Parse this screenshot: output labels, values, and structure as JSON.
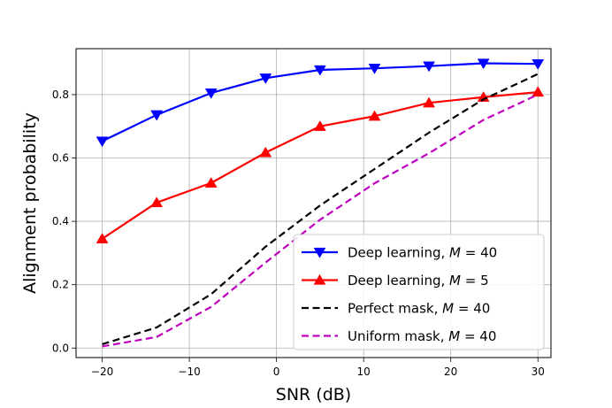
{
  "chart_data": {
    "type": "line",
    "xlabel": "SNR (dB)",
    "ylabel": "Alignment probability",
    "xlim": [
      -23,
      31.5
    ],
    "ylim": [
      -0.03,
      0.945
    ],
    "xticks": [
      -20,
      -10,
      0,
      10,
      20,
      30
    ],
    "yticks": [
      0.0,
      0.2,
      0.4,
      0.6,
      0.8
    ],
    "xtick_labels": [
      "−20",
      "−10",
      "0",
      "10",
      "20",
      "30"
    ],
    "ytick_labels": [
      "0.0",
      "0.2",
      "0.4",
      "0.6",
      "0.8"
    ],
    "grid": true,
    "legend_position": "lower-right",
    "series": [
      {
        "name": "Deep learning, M = 40",
        "label_prefix": "Deep learning, ",
        "label_var": "M",
        "label_suffix": " = 40",
        "color": "#0000ff",
        "dash": "solid",
        "marker": "triangle-down",
        "x": [
          -20,
          -13.75,
          -7.5,
          -1.25,
          5,
          11.25,
          17.5,
          23.75,
          30
        ],
        "y": [
          0.653,
          0.736,
          0.805,
          0.852,
          0.878,
          0.883,
          0.89,
          0.899,
          0.897
        ]
      },
      {
        "name": "Deep learning, M = 5",
        "label_prefix": "Deep learning, ",
        "label_var": "M",
        "label_suffix": " = 5",
        "color": "#ff0000",
        "dash": "solid",
        "marker": "triangle-up",
        "x": [
          -20,
          -13.75,
          -7.5,
          -1.25,
          5,
          11.25,
          17.5,
          23.75,
          30
        ],
        "y": [
          0.345,
          0.459,
          0.521,
          0.617,
          0.7,
          0.732,
          0.774,
          0.792,
          0.808
        ]
      },
      {
        "name": "Perfect mask, M = 40",
        "label_prefix": "Perfect mask, ",
        "label_var": "M",
        "label_suffix": " = 40",
        "color": "#000000",
        "dash": "dashed",
        "marker": "none",
        "x": [
          -20,
          -13.75,
          -7.5,
          -1.25,
          5,
          11.25,
          17.5,
          23.75,
          30
        ],
        "y": [
          0.012,
          0.065,
          0.17,
          0.32,
          0.45,
          0.565,
          0.68,
          0.785,
          0.865
        ]
      },
      {
        "name": "Uniform mask, M = 40",
        "label_prefix": "Uniform mask, ",
        "label_var": "M",
        "label_suffix": " = 40",
        "color": "#bf00bf",
        "dash": "dashed",
        "marker": "none",
        "x": [
          -20,
          -13.75,
          -7.5,
          -1.25,
          5,
          11.25,
          17.5,
          23.75,
          30
        ],
        "y": [
          0.005,
          0.035,
          0.13,
          0.27,
          0.405,
          0.52,
          0.615,
          0.72,
          0.8
        ]
      }
    ]
  }
}
